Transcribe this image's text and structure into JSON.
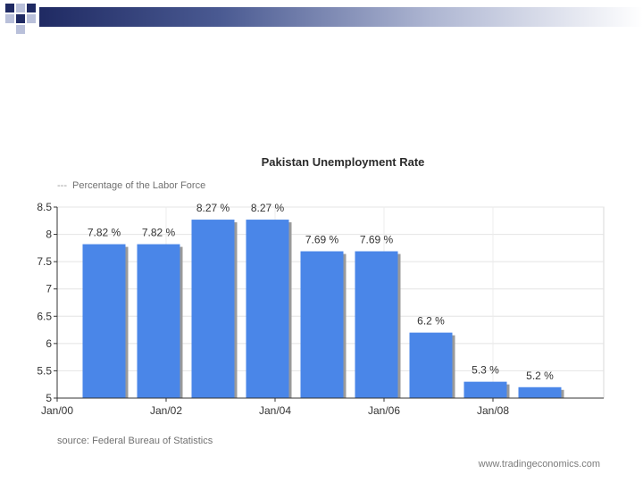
{
  "slide": {
    "banner_colors": [
      "#1f2a63",
      "#aeb6d2"
    ]
  },
  "chart_data": {
    "type": "bar",
    "title": "Pakistan Unemployment Rate",
    "legend": "Percentage of the Labor Force",
    "source": "source: Federal Bureau of Statistics",
    "watermark": "www.tradingeconomics.com",
    "unit": "%",
    "ylim": [
      5,
      8.5
    ],
    "yticks": [
      "5",
      "5.5",
      "6",
      "6.5",
      "7",
      "7.5",
      "8",
      "8.5"
    ],
    "xticks": [
      "Jan/00",
      "Jan/02",
      "Jan/04",
      "Jan/06",
      "Jan/08"
    ],
    "grid": true,
    "bar_color": "#4a86e8",
    "values": [
      7.82,
      7.82,
      8.27,
      8.27,
      7.69,
      7.69,
      6.2,
      5.3,
      5.2
    ],
    "value_labels": [
      "7.82 %",
      "7.82 %",
      "8.27 %",
      "8.27 %",
      "7.69 %",
      "7.69 %",
      "6.2 %",
      "5.3 %",
      "5.2 %"
    ]
  }
}
